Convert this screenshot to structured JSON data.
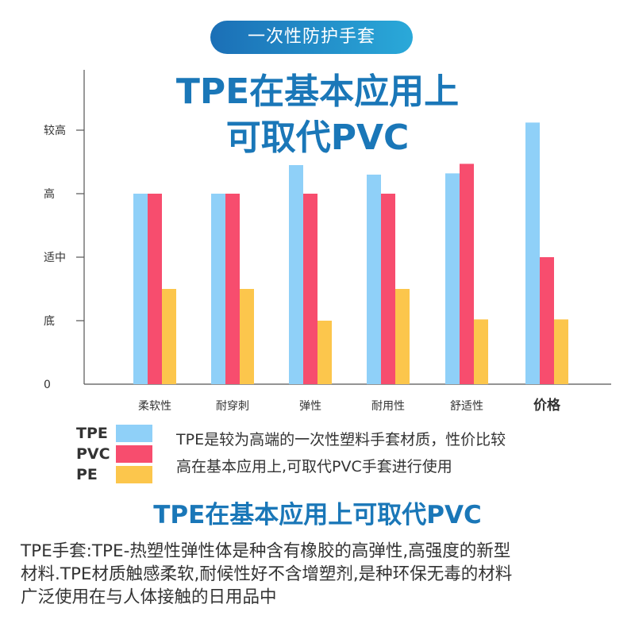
{
  "banner": {
    "label": "一次性防护手套"
  },
  "headline": {
    "line1": "TPE在基本应用上",
    "line2": "可取代PVC"
  },
  "chart_data": {
    "type": "bar",
    "title": "",
    "xlabel": "",
    "ylabel": "",
    "ylim": [
      0,
      4
    ],
    "y_ticks": [
      {
        "value": 0,
        "label": "0"
      },
      {
        "value": 1,
        "label": "底"
      },
      {
        "value": 2,
        "label": "适中"
      },
      {
        "value": 3,
        "label": "高"
      },
      {
        "value": 4,
        "label": "较高"
      }
    ],
    "categories": [
      "柔软性",
      "耐穿刺",
      "弹性",
      "耐用性",
      "舒适性",
      "价格"
    ],
    "series": [
      {
        "name": "TPE",
        "color": "#8fd0f8",
        "values": [
          3.0,
          3.0,
          3.45,
          3.3,
          3.32,
          4.12
        ]
      },
      {
        "name": "PVC",
        "color": "#f74d6e",
        "values": [
          3.0,
          3.0,
          3.0,
          3.0,
          3.47,
          2.0
        ]
      },
      {
        "name": "PE",
        "color": "#fcc64c",
        "values": [
          1.5,
          1.5,
          1.0,
          1.5,
          1.02,
          1.02
        ]
      }
    ],
    "grid": false,
    "legend": "bottom-left"
  },
  "legend_note": {
    "line1": "TPE是较为高端的一次性塑料手套材质，性价比较",
    "line2": "高在基本应用上,可取代PVC手套进行使用"
  },
  "subheading": "TPE在基本应用上可取代PVC",
  "paragraph": {
    "line1": "TPE手套:TPE-热塑性弹性体是种含有橡胶的高弹性,高强度的新型",
    "line2": "材料.TPE材质触感柔软,耐候性好不含增塑剂,是种环保无毒的材料",
    "line3": "广泛使用在与人体接触的日用品中"
  }
}
